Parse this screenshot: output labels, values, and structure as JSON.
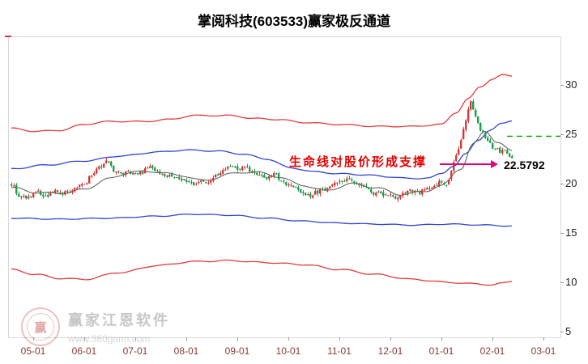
{
  "annotation": {
    "support_text": "生命线对股价形成支撑",
    "price_label": "22.5792"
  },
  "watermark": {
    "brand": "赢家江恩软件",
    "url": "www.360gann.com",
    "logo_char": "赢"
  },
  "chart_data": {
    "type": "candlestick",
    "title": "掌阅科技(603533)赢家极反通道",
    "symbol": "掌阅科技",
    "code": "603533",
    "indicator": "赢家极反通道",
    "x_ticks": [
      "05-01",
      "06-01",
      "07-01",
      "08-01",
      "09-01",
      "10-01",
      "11-01",
      "12-01",
      "01-01",
      "02-01",
      "03-01"
    ],
    "y_ticks": [
      30,
      25,
      20,
      15,
      10,
      5
    ],
    "ylim": [
      5,
      34
    ],
    "grid": false,
    "last_price": 22.5792,
    "days": 207,
    "month_start_day": 9,
    "days_per_month": 21,
    "seed": 987241,
    "colors": {
      "up": "#d23b3b",
      "down": "#1f9e4e",
      "annotation_red": "#e60000",
      "arrow_magenta": "#e4007f",
      "x_label": "#8b3a3a",
      "y_label": "#222222",
      "frame": "#d9d9d9"
    },
    "close_anchors": [
      [
        0,
        19.9
      ],
      [
        3,
        18.9
      ],
      [
        6,
        18.5
      ],
      [
        10,
        19.2
      ],
      [
        14,
        18.8
      ],
      [
        18,
        19.3
      ],
      [
        22,
        19.0
      ],
      [
        26,
        19.6
      ],
      [
        30,
        20.1
      ],
      [
        33,
        20.8
      ],
      [
        36,
        21.6
      ],
      [
        39,
        22.3
      ],
      [
        42,
        21.4
      ],
      [
        45,
        21.0
      ],
      [
        48,
        21.3
      ],
      [
        51,
        20.8
      ],
      [
        54,
        21.2
      ],
      [
        57,
        21.8
      ],
      [
        60,
        21.2
      ],
      [
        63,
        20.7
      ],
      [
        66,
        20.9
      ],
      [
        69,
        20.5
      ],
      [
        72,
        20.3
      ],
      [
        75,
        20.0
      ],
      [
        78,
        20.4
      ],
      [
        81,
        20.2
      ],
      [
        84,
        20.7
      ],
      [
        87,
        21.3
      ],
      [
        90,
        21.9
      ],
      [
        93,
        21.5
      ],
      [
        96,
        21.8
      ],
      [
        99,
        21.2
      ],
      [
        102,
        20.8
      ],
      [
        105,
        20.5
      ],
      [
        108,
        20.9
      ],
      [
        111,
        20.3
      ],
      [
        114,
        20.0
      ],
      [
        117,
        19.5
      ],
      [
        120,
        19.1
      ],
      [
        123,
        18.8
      ],
      [
        126,
        19.2
      ],
      [
        129,
        19.5
      ],
      [
        132,
        19.8
      ],
      [
        135,
        20.1
      ],
      [
        138,
        20.5
      ],
      [
        141,
        20.2
      ],
      [
        144,
        19.8
      ],
      [
        147,
        19.4
      ],
      [
        150,
        19.0
      ],
      [
        153,
        18.8
      ],
      [
        156,
        18.9
      ],
      [
        159,
        18.6
      ],
      [
        162,
        19.0
      ],
      [
        165,
        19.3
      ],
      [
        168,
        19.1
      ],
      [
        171,
        19.5
      ],
      [
        174,
        19.9
      ],
      [
        177,
        20.3
      ],
      [
        179,
        20.0
      ],
      [
        181,
        21.2
      ],
      [
        183,
        22.8
      ],
      [
        185,
        24.6
      ],
      [
        187,
        26.4
      ],
      [
        189,
        28.2
      ],
      [
        191,
        26.8
      ],
      [
        193,
        25.4
      ],
      [
        195,
        24.6
      ],
      [
        197,
        24.0
      ],
      [
        199,
        23.5
      ],
      [
        201,
        23.2
      ],
      [
        203,
        23.4
      ],
      [
        205,
        22.9
      ],
      [
        206,
        22.5792
      ]
    ],
    "lines": {
      "upper_red": {
        "color": "#e03c3c",
        "anchors": [
          [
            0,
            25.6
          ],
          [
            10,
            25.3
          ],
          [
            20,
            25.4
          ],
          [
            30,
            26.0
          ],
          [
            40,
            26.3
          ],
          [
            55,
            26.3
          ],
          [
            65,
            26.5
          ],
          [
            75,
            26.9
          ],
          [
            90,
            26.9
          ],
          [
            100,
            26.6
          ],
          [
            110,
            26.5
          ],
          [
            120,
            26.2
          ],
          [
            135,
            26.0
          ],
          [
            150,
            25.8
          ],
          [
            165,
            25.8
          ],
          [
            177,
            26.0
          ],
          [
            183,
            27.2
          ],
          [
            188,
            28.6
          ],
          [
            193,
            29.8
          ],
          [
            198,
            30.6
          ],
          [
            202,
            31.0
          ],
          [
            206,
            30.9
          ]
        ]
      },
      "upper_blue": {
        "color": "#2f45d0",
        "anchors": [
          [
            0,
            21.5
          ],
          [
            15,
            21.9
          ],
          [
            30,
            22.3
          ],
          [
            45,
            22.8
          ],
          [
            60,
            23.2
          ],
          [
            72,
            23.4
          ],
          [
            85,
            23.3
          ],
          [
            95,
            23.0
          ],
          [
            105,
            22.5
          ],
          [
            115,
            21.6
          ],
          [
            125,
            21.2
          ],
          [
            135,
            21.0
          ],
          [
            145,
            20.9
          ],
          [
            155,
            20.7
          ],
          [
            165,
            20.5
          ],
          [
            172,
            20.6
          ],
          [
            177,
            21.0
          ],
          [
            182,
            21.8
          ],
          [
            187,
            23.0
          ],
          [
            192,
            24.4
          ],
          [
            197,
            25.4
          ],
          [
            202,
            26.1
          ],
          [
            206,
            26.4
          ]
        ]
      },
      "lower_blue": {
        "color": "#2f45d0",
        "anchors": [
          [
            0,
            16.5
          ],
          [
            20,
            16.4
          ],
          [
            40,
            16.5
          ],
          [
            60,
            16.7
          ],
          [
            75,
            16.9
          ],
          [
            90,
            16.8
          ],
          [
            105,
            16.5
          ],
          [
            120,
            16.2
          ],
          [
            135,
            16.0
          ],
          [
            150,
            15.9
          ],
          [
            165,
            15.8
          ],
          [
            180,
            15.9
          ],
          [
            195,
            15.8
          ],
          [
            206,
            15.7
          ]
        ]
      },
      "lower_red": {
        "color": "#e03c3c",
        "anchors": [
          [
            0,
            11.3
          ],
          [
            10,
            10.8
          ],
          [
            20,
            10.4
          ],
          [
            30,
            10.3
          ],
          [
            45,
            11.0
          ],
          [
            60,
            11.7
          ],
          [
            75,
            12.1
          ],
          [
            90,
            12.2
          ],
          [
            105,
            12.0
          ],
          [
            120,
            11.8
          ],
          [
            135,
            11.3
          ],
          [
            150,
            10.8
          ],
          [
            165,
            10.3
          ],
          [
            180,
            10.0
          ],
          [
            190,
            9.85
          ],
          [
            198,
            9.75
          ],
          [
            202,
            9.9
          ],
          [
            206,
            10.1
          ]
        ]
      },
      "ma": {
        "color": "#555555",
        "anchors": [
          [
            0,
            19.6
          ],
          [
            10,
            19.1
          ],
          [
            20,
            19.0
          ],
          [
            30,
            19.4
          ],
          [
            40,
            20.5
          ],
          [
            50,
            21.2
          ],
          [
            60,
            21.2
          ],
          [
            70,
            20.8
          ],
          [
            80,
            20.3
          ],
          [
            90,
            21.0
          ],
          [
            100,
            21.2
          ],
          [
            110,
            20.7
          ],
          [
            120,
            19.8
          ],
          [
            130,
            19.3
          ],
          [
            140,
            20.0
          ],
          [
            150,
            19.6
          ],
          [
            160,
            18.9
          ],
          [
            170,
            19.2
          ],
          [
            177,
            19.8
          ],
          [
            185,
            21.5
          ],
          [
            190,
            24.0
          ],
          [
            195,
            25.3
          ],
          [
            200,
            24.2
          ],
          [
            206,
            23.3
          ]
        ]
      }
    },
    "green_dash": {
      "price": 24.8,
      "from_day": 204,
      "color": "#00a000"
    }
  }
}
